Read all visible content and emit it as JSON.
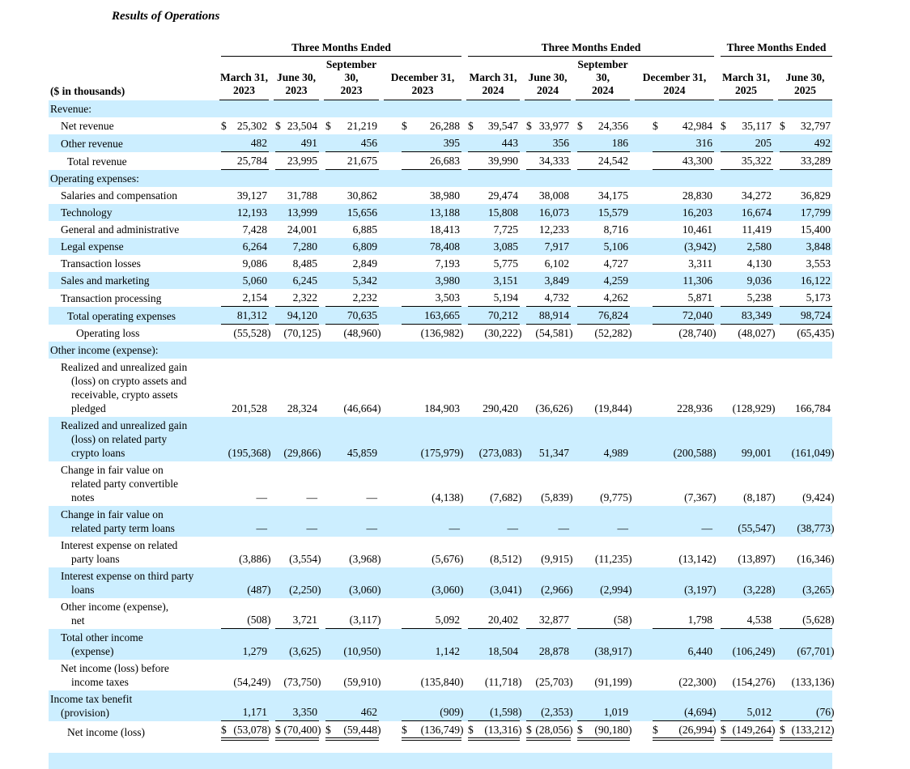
{
  "title": "Results of Operations",
  "table": {
    "units_label": "($ in thousands)",
    "groups": [
      {
        "label": "Three Months Ended",
        "span": 4
      },
      {
        "label": "Three Months Ended",
        "span": 4
      },
      {
        "label": "Three Months Ended",
        "span": 2
      }
    ],
    "columns": [
      "March 31,\n2023",
      "June 30,\n2023",
      "September 30,\n2023",
      "December 31,\n2023",
      "March 31,\n2024",
      "June 30,\n2024",
      "September 30,\n2024",
      "December 31,\n2024",
      "March 31,\n2025",
      "June 30,\n2025"
    ],
    "colors": {
      "stripe": "#cceeff",
      "text": "#000000"
    },
    "rows": [
      {
        "label": "Revenue:",
        "indent": 0,
        "bg": "blue",
        "section": true
      },
      {
        "label": "Net revenue",
        "indent": 1,
        "bg": "white",
        "dollar": true,
        "values": [
          "25,302",
          "23,504",
          "21,219",
          "26,288",
          "39,547",
          "33,977",
          "24,356",
          "42,984",
          "35,117",
          "32,797"
        ]
      },
      {
        "label": "Other revenue",
        "indent": 1,
        "bg": "blue",
        "underline": "single",
        "values": [
          "482",
          "491",
          "456",
          "395",
          "443",
          "356",
          "186",
          "316",
          "205",
          "492"
        ]
      },
      {
        "label": "Total revenue",
        "indent": 2,
        "bg": "white",
        "underline": "single",
        "values": [
          "25,784",
          "23,995",
          "21,675",
          "26,683",
          "39,990",
          "34,333",
          "24,542",
          "43,300",
          "35,322",
          "33,289"
        ]
      },
      {
        "label": "Operating expenses:",
        "indent": 0,
        "bg": "blue",
        "section": true
      },
      {
        "label": "Salaries and compensation",
        "indent": 1,
        "bg": "white",
        "values": [
          "39,127",
          "31,788",
          "30,862",
          "38,980",
          "29,474",
          "38,008",
          "34,175",
          "28,830",
          "34,272",
          "36,829"
        ]
      },
      {
        "label": "Technology",
        "indent": 1,
        "bg": "blue",
        "values": [
          "12,193",
          "13,999",
          "15,656",
          "13,188",
          "15,808",
          "16,073",
          "15,579",
          "16,203",
          "16,674",
          "17,799"
        ]
      },
      {
        "label": "General and administrative",
        "indent": 1,
        "bg": "white",
        "values": [
          "7,428",
          "24,001",
          "6,885",
          "18,413",
          "7,725",
          "12,233",
          "8,716",
          "10,461",
          "11,419",
          "15,400"
        ]
      },
      {
        "label": "Legal expense",
        "indent": 1,
        "bg": "blue",
        "values": [
          "6,264",
          "7,280",
          "6,809",
          "78,408",
          "3,085",
          "7,917",
          "5,106",
          "(3,942)",
          "2,580",
          "3,848"
        ]
      },
      {
        "label": "Transaction losses",
        "indent": 1,
        "bg": "white",
        "values": [
          "9,086",
          "8,485",
          "2,849",
          "7,193",
          "5,775",
          "6,102",
          "4,727",
          "3,311",
          "4,130",
          "3,553"
        ]
      },
      {
        "label": "Sales and marketing",
        "indent": 1,
        "bg": "blue",
        "values": [
          "5,060",
          "6,245",
          "5,342",
          "3,980",
          "3,151",
          "3,849",
          "4,259",
          "11,306",
          "9,036",
          "16,122"
        ]
      },
      {
        "label": "Transaction processing",
        "indent": 1,
        "bg": "white",
        "underline": "single",
        "values": [
          "2,154",
          "2,322",
          "2,232",
          "3,503",
          "5,194",
          "4,732",
          "4,262",
          "5,871",
          "5,238",
          "5,173"
        ]
      },
      {
        "label": "Total operating expenses",
        "indent": 2,
        "bg": "blue",
        "underline": "single",
        "values": [
          "81,312",
          "94,120",
          "70,635",
          "163,665",
          "70,212",
          "88,914",
          "76,824",
          "72,040",
          "83,349",
          "98,724"
        ]
      },
      {
        "label": "Operating loss",
        "indent": 3,
        "bg": "white",
        "values": [
          "(55,528)",
          "(70,125)",
          "(48,960)",
          "(136,982)",
          "(30,222)",
          "(54,581)",
          "(52,282)",
          "(28,740)",
          "(48,027)",
          "(65,435)"
        ]
      },
      {
        "label": "Other income (expense):",
        "indent": 0,
        "bg": "blue",
        "section": true
      },
      {
        "label": "Realized and unrealized gain\n(loss) on crypto assets and\nreceivable, crypto assets\npledged",
        "indent": 1,
        "bg": "white",
        "values": [
          "201,528",
          "28,324",
          "(46,664)",
          "184,903",
          "290,420",
          "(36,626)",
          "(19,844)",
          "228,936",
          "(128,929)",
          "166,784"
        ]
      },
      {
        "label": "Realized and unrealized gain\n(loss) on related party\ncrypto loans",
        "indent": 1,
        "bg": "blue",
        "values": [
          "(195,368)",
          "(29,866)",
          "45,859",
          "(175,979)",
          "(273,083)",
          "51,347",
          "4,989",
          "(200,588)",
          "99,001",
          "(161,049)"
        ]
      },
      {
        "label": "Change in fair value on\nrelated party convertible\nnotes",
        "indent": 1,
        "bg": "white",
        "values": [
          "—",
          "—",
          "—",
          "(4,138)",
          "(7,682)",
          "(5,839)",
          "(9,775)",
          "(7,367)",
          "(8,187)",
          "(9,424)"
        ]
      },
      {
        "label": "Change in fair value on\nrelated party term loans",
        "indent": 1,
        "bg": "blue",
        "values": [
          "—",
          "—",
          "—",
          "—",
          "—",
          "—",
          "—",
          "—",
          "(55,547)",
          "(38,773)"
        ]
      },
      {
        "label": "Interest expense on related\nparty loans",
        "indent": 1,
        "bg": "white",
        "values": [
          "(3,886)",
          "(3,554)",
          "(3,968)",
          "(5,676)",
          "(8,512)",
          "(9,915)",
          "(11,235)",
          "(13,142)",
          "(13,897)",
          "(16,346)"
        ]
      },
      {
        "label": "Interest expense on third party\nloans",
        "indent": 1,
        "bg": "blue",
        "values": [
          "(487)",
          "(2,250)",
          "(3,060)",
          "(3,060)",
          "(3,041)",
          "(2,966)",
          "(2,994)",
          "(3,197)",
          "(3,228)",
          "(3,265)"
        ]
      },
      {
        "label": "Other income (expense),\nnet",
        "indent": 1,
        "bg": "white",
        "underline": "single",
        "values": [
          "(508)",
          "3,721",
          "(3,117)",
          "5,092",
          "20,402",
          "32,877",
          "(58)",
          "1,798",
          "4,538",
          "(5,628)"
        ]
      },
      {
        "label": "Total other income\n(expense)",
        "indent": 1,
        "bg": "blue",
        "values": [
          "1,279",
          "(3,625)",
          "(10,950)",
          "1,142",
          "18,504",
          "28,878",
          "(38,917)",
          "6,440",
          "(106,249)",
          "(67,701)"
        ]
      },
      {
        "label": "Net income (loss) before\nincome taxes",
        "indent": 1,
        "bg": "white",
        "values": [
          "(54,249)",
          "(73,750)",
          "(59,910)",
          "(135,840)",
          "(11,718)",
          "(25,703)",
          "(91,199)",
          "(22,300)",
          "(154,276)",
          "(133,136)"
        ]
      },
      {
        "label": "Income tax benefit\n(provision)",
        "indent": 0,
        "bg": "blue",
        "underline": "single",
        "values": [
          "1,171",
          "3,350",
          "462",
          "(909)",
          "(1,598)",
          "(2,353)",
          "1,019",
          "(4,694)",
          "5,012",
          "(76)"
        ]
      },
      {
        "label": "Net income (loss)",
        "indent": 2,
        "bg": "white",
        "dollar": true,
        "underline": "double",
        "values": [
          "(53,078)",
          "(70,400)",
          "(59,448)",
          "(136,749)",
          "(13,316)",
          "(28,056)",
          "(90,180)",
          "(26,994)",
          "(149,264)",
          "(133,212)"
        ]
      }
    ]
  }
}
